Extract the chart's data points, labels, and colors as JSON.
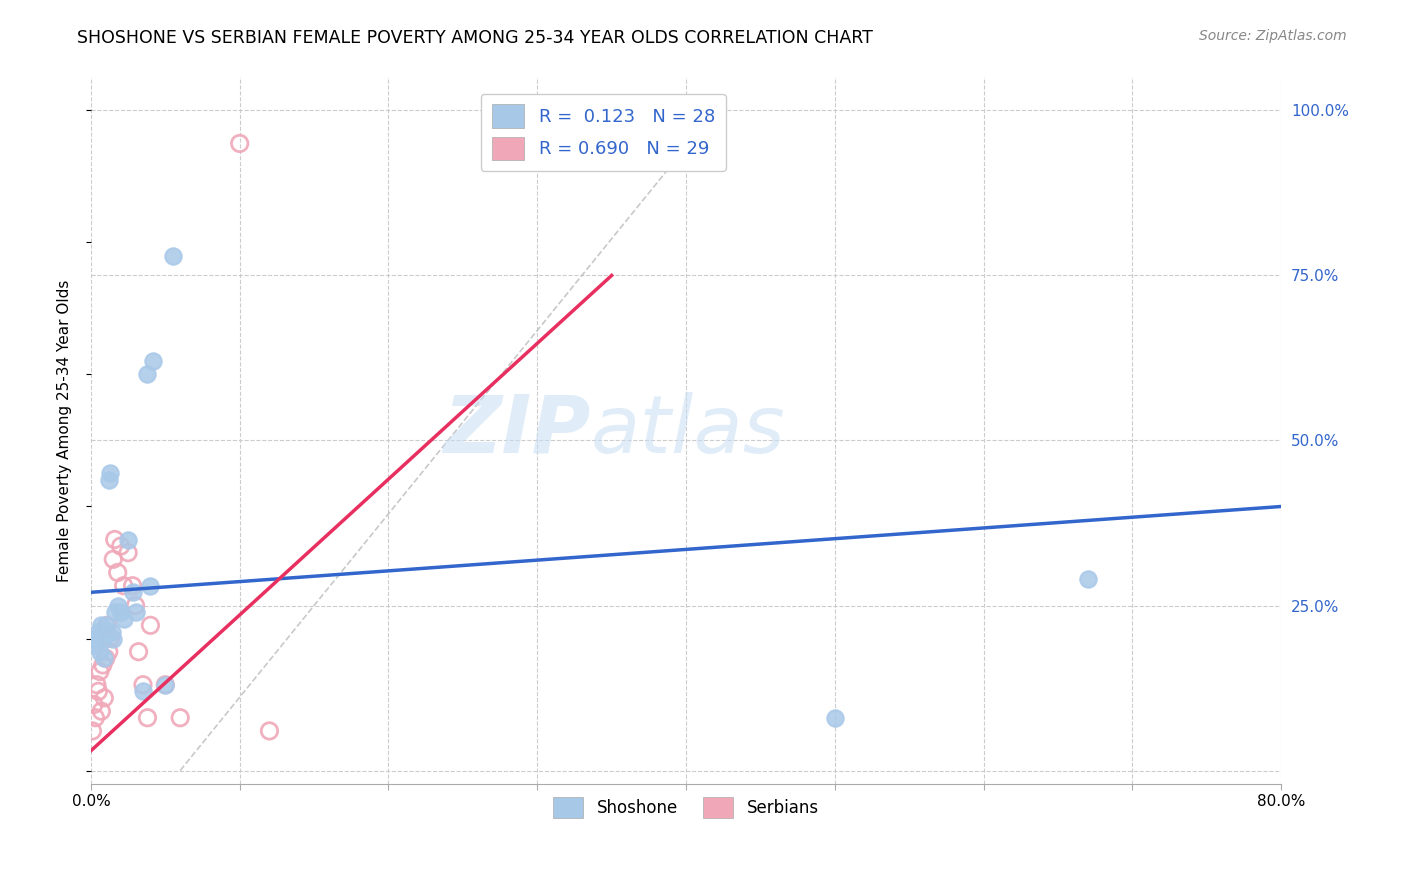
{
  "title": "SHOSHONE VS SERBIAN FEMALE POVERTY AMONG 25-34 YEAR OLDS CORRELATION CHART",
  "source": "Source: ZipAtlas.com",
  "ylabel": "Female Poverty Among 25-34 Year Olds",
  "xlim": [
    0.0,
    0.8
  ],
  "ylim": [
    -0.02,
    1.05
  ],
  "xticks": [
    0.0,
    0.1,
    0.2,
    0.3,
    0.4,
    0.5,
    0.6,
    0.7,
    0.8
  ],
  "xticklabels": [
    "0.0%",
    "",
    "",
    "",
    "",
    "",
    "",
    "",
    "80.0%"
  ],
  "ytick_positions": [
    0.0,
    0.25,
    0.5,
    0.75,
    1.0
  ],
  "yticklabels": [
    "",
    "25.0%",
    "50.0%",
    "75.0%",
    "100.0%"
  ],
  "shoshone_R": 0.123,
  "shoshone_N": 28,
  "serbian_R": 0.69,
  "serbian_N": 29,
  "shoshone_color": "#a8c8e8",
  "serbian_color": "#f0a8b8",
  "shoshone_line_color": "#3366cc",
  "serbian_line_color": "#e83060",
  "grid_color": "#cccccc",
  "watermark_zip": "ZIP",
  "watermark_atlas": "atlas",
  "shoshone_x": [
    0.002,
    0.003,
    0.005,
    0.006,
    0.007,
    0.008,
    0.009,
    0.01,
    0.011,
    0.012,
    0.013,
    0.014,
    0.015,
    0.016,
    0.018,
    0.02,
    0.022,
    0.025,
    0.028,
    0.03,
    0.035,
    0.038,
    0.04,
    0.042,
    0.05,
    0.055,
    0.5,
    0.67
  ],
  "shoshone_y": [
    0.2,
    0.19,
    0.21,
    0.18,
    0.22,
    0.2,
    0.17,
    0.22,
    0.21,
    0.44,
    0.45,
    0.21,
    0.2,
    0.24,
    0.25,
    0.24,
    0.23,
    0.35,
    0.27,
    0.24,
    0.12,
    0.6,
    0.28,
    0.62,
    0.13,
    0.78,
    0.08,
    0.29
  ],
  "serbian_x": [
    0.001,
    0.002,
    0.003,
    0.004,
    0.005,
    0.006,
    0.007,
    0.008,
    0.009,
    0.01,
    0.011,
    0.012,
    0.013,
    0.015,
    0.016,
    0.018,
    0.02,
    0.022,
    0.025,
    0.028,
    0.03,
    0.032,
    0.035,
    0.038,
    0.04,
    0.05,
    0.06,
    0.1,
    0.12
  ],
  "serbian_y": [
    0.06,
    0.1,
    0.08,
    0.13,
    0.12,
    0.15,
    0.09,
    0.16,
    0.11,
    0.17,
    0.22,
    0.18,
    0.2,
    0.32,
    0.35,
    0.3,
    0.34,
    0.28,
    0.33,
    0.28,
    0.25,
    0.18,
    0.13,
    0.08,
    0.22,
    0.13,
    0.08,
    0.95,
    0.06
  ],
  "blue_line_x": [
    0.0,
    0.8
  ],
  "blue_line_y": [
    0.27,
    0.4
  ],
  "pink_line_x": [
    0.0,
    0.35
  ],
  "pink_line_y": [
    0.03,
    0.75
  ],
  "diag_line_x": [
    0.06,
    0.42
  ],
  "diag_line_y": [
    0.0,
    1.0
  ]
}
